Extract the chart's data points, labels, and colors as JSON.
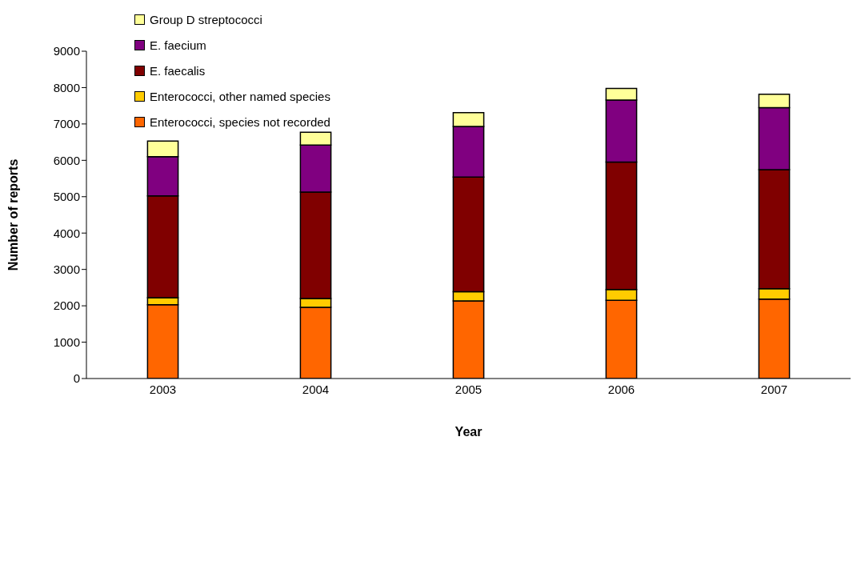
{
  "chart_data": {
    "type": "bar",
    "stacked": true,
    "xlabel": "Year",
    "ylabel": "Number of reports",
    "categories": [
      "2003",
      "2004",
      "2005",
      "2006",
      "2007"
    ],
    "series": [
      {
        "name": "Enterococci, species not recorded",
        "color": "#ff6600",
        "values": [
          2030,
          1960,
          2135,
          2150,
          2185
        ]
      },
      {
        "name": "Enterococci, other named species",
        "color": "#ffcc00",
        "values": [
          190,
          240,
          255,
          300,
          285
        ]
      },
      {
        "name": "E. faecalis",
        "color": "#800000",
        "values": [
          2800,
          2925,
          3150,
          3500,
          3275
        ]
      },
      {
        "name": "E. faecium",
        "color": "#800080",
        "values": [
          1080,
          1295,
          1390,
          1710,
          1705
        ]
      },
      {
        "name": "Group D streptococci",
        "color": "#ffff99",
        "values": [
          430,
          350,
          380,
          315,
          365
        ]
      }
    ],
    "ylim": [
      0,
      9000
    ],
    "yticks": [
      0,
      1000,
      2000,
      3000,
      4000,
      5000,
      6000,
      7000,
      8000,
      9000
    ],
    "grid": false,
    "legend": "top left"
  }
}
